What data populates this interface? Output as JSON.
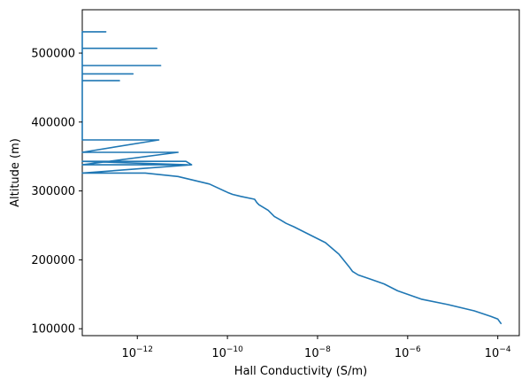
{
  "chart_data": {
    "type": "line",
    "xlabel": "Hall Conductivity (S/m)",
    "ylabel": "Altitude (m)",
    "xscale": "log",
    "xlim": [
      6e-14,
      0.0003
    ],
    "ylim": [
      90000,
      563000
    ],
    "grid": false,
    "legend": "none",
    "x_ticks": [
      {
        "value": 1e-12,
        "base": "10",
        "exp": "−12"
      },
      {
        "value": 1e-10,
        "base": "10",
        "exp": "−10"
      },
      {
        "value": 1e-08,
        "base": "10",
        "exp": "−8"
      },
      {
        "value": 1e-06,
        "base": "10",
        "exp": "−6"
      },
      {
        "value": 0.0001,
        "base": "10",
        "exp": "−4"
      }
    ],
    "y_ticks": [
      {
        "value": 100000,
        "label": "100000"
      },
      {
        "value": 200000,
        "label": "200000"
      },
      {
        "value": 300000,
        "label": "300000"
      },
      {
        "value": 400000,
        "label": "400000"
      },
      {
        "value": 500000,
        "label": "500000"
      }
    ],
    "color": "#1f77b4",
    "series": [
      {
        "x": [
          0.00012,
          0.0001,
          7e-05,
          3e-05,
          8e-06,
          2e-06,
          6e-07,
          3e-07,
          1.5e-07,
          8e-08,
          6e-08,
          5e-08,
          3e-08,
          1.5e-08,
          6e-09,
          3e-09,
          2e-09,
          1.5e-09,
          1.1e-09,
          8e-10,
          5e-10,
          4.5e-10,
          4e-10,
          2e-10,
          1.3e-10,
          1e-10,
          4e-11,
          8e-12,
          1.5e-12,
          6e-14,
          1.6e-11,
          1.2e-11,
          6e-14,
          1.3e-11,
          6e-14,
          8e-12,
          6e-14,
          3e-12,
          6e-14,
          6e-14,
          4e-13,
          6e-14,
          6e-14,
          8e-13,
          6e-14,
          6e-14,
          3.3e-12,
          6e-14,
          6e-14,
          2.7e-12,
          6e-14,
          6e-14,
          2e-13,
          6e-14
        ],
        "y": [
          107000,
          114000,
          118000,
          126000,
          135000,
          143000,
          155000,
          165000,
          172000,
          178000,
          183000,
          190000,
          208000,
          225000,
          238000,
          248000,
          253000,
          258000,
          263000,
          272000,
          280000,
          283000,
          288000,
          292000,
          295000,
          298000,
          310000,
          321000,
          326000,
          326000,
          338000,
          343000,
          343000,
          338000,
          338000,
          356000,
          356000,
          374000,
          374000,
          460000,
          460000,
          460000,
          470000,
          470000,
          470000,
          482000,
          482000,
          482000,
          507000,
          507000,
          507000,
          531000,
          531000,
          531000
        ]
      }
    ]
  }
}
